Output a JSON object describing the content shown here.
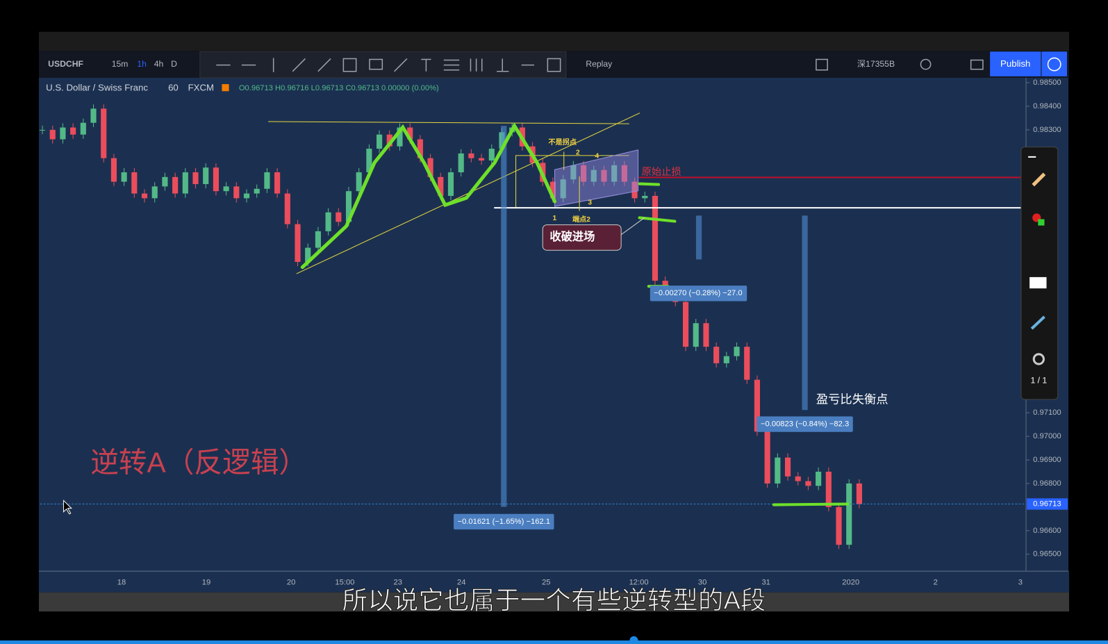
{
  "toolbar": {
    "symbol": "USDCHF",
    "intervals": [
      "15m",
      "1h",
      "4h",
      "D"
    ],
    "replay": "Replay",
    "account": "深17355B",
    "publish": "Publish"
  },
  "legend": {
    "name": "U.S. Dollar / Swiss Franc",
    "interval": "60",
    "source": "FXCM",
    "ohlc": "O0.96713 H0.96716 L0.96713 C0.96713 0.00000 (0.00%)"
  },
  "chart_data": {
    "type": "candlestick",
    "closes": [
      0.983,
      0.9826,
      0.9831,
      0.9828,
      0.9833,
      0.9839,
      0.9818,
      0.9808,
      0.9812,
      0.9803,
      0.9801,
      0.9806,
      0.981,
      0.9803,
      0.9812,
      0.9807,
      0.9814,
      0.9804,
      0.9806,
      0.9801,
      0.9803,
      0.9805,
      0.9812,
      0.9803,
      0.979,
      0.9774,
      0.978,
      0.9787,
      0.9795,
      0.9791,
      0.9804,
      0.9812,
      0.9822,
      0.9828,
      0.9823,
      0.9831,
      0.9826,
      0.9818,
      0.981,
      0.9802,
      0.9812,
      0.982,
      0.9818,
      0.9817,
      0.9822,
      0.9829,
      0.9831,
      0.9823,
      0.9816,
      0.9808,
      0.9801,
      0.9809,
      0.9815,
      0.9808,
      0.9813,
      0.9808,
      0.9815,
      0.9808,
      0.9801,
      0.9802,
      0.9766,
      0.976,
      0.9757,
      0.9738,
      0.9748,
      0.9738,
      0.9731,
      0.9734,
      0.9738,
      0.9724,
      0.9702,
      0.968,
      0.9691,
      0.9683,
      0.9681,
      0.9679,
      0.9685,
      0.967,
      0.9654,
      0.968,
      0.96713
    ],
    "up_color": "#53b987",
    "down_color": "#eb4d5c",
    "ylim": [
      0.96428,
      0.98521
    ],
    "yticks": [
      {
        "value": 0.985,
        "label": "0.98500"
      },
      {
        "value": 0.984,
        "label": "0.98400"
      },
      {
        "value": 0.983,
        "label": "0.98300"
      },
      {
        "value": 0.971,
        "label": "0.97100"
      },
      {
        "value": 0.97,
        "label": "0.97000"
      },
      {
        "value": 0.969,
        "label": "0.96900"
      },
      {
        "value": 0.968,
        "label": "0.96800"
      },
      {
        "value": 0.966,
        "label": "0.96600"
      },
      {
        "value": 0.965,
        "label": "0.96500"
      }
    ],
    "last_price": {
      "value": 0.96713,
      "label": "0.96713"
    },
    "xlabels": [
      "18",
      "19",
      "20",
      "15:00",
      "23",
      "24",
      "25",
      "12:00",
      "30",
      "31",
      "2020",
      "2",
      "3"
    ]
  },
  "annotations": {
    "not_turning": "不是拐点",
    "n2": "2",
    "n4": "4",
    "n1": "1",
    "n3": "3",
    "endpoint2": "端点2",
    "stop_loss": "原始止损",
    "entry": "收破进场",
    "measure_small": "−0.00270 (−0.28%) −27.0",
    "imbalance": "盈亏比失衡点",
    "measure_mid": "−0.00823 (−0.84%) −82.3",
    "measure_big": "−0.01621 (−1.65%) −162.1",
    "reversal": "逆转A（反逻辑）"
  },
  "drawing_panel": {
    "page": "1 / 1"
  },
  "subtitle": "所以说它也属于一个有些逆转型的A段"
}
